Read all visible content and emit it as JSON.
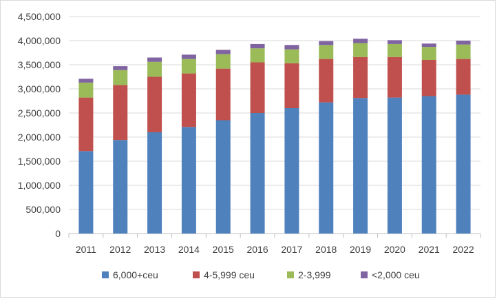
{
  "chart_data": {
    "type": "bar",
    "stacked": true,
    "categories": [
      "2011",
      "2012",
      "2013",
      "2014",
      "2015",
      "2016",
      "2017",
      "2018",
      "2019",
      "2020",
      "2021",
      "2022"
    ],
    "series": [
      {
        "name": "6,000+ceu",
        "color": "#4F81BD",
        "values": [
          1710000,
          1940000,
          2100000,
          2210000,
          2350000,
          2500000,
          2600000,
          2720000,
          2810000,
          2820000,
          2850000,
          2880000
        ]
      },
      {
        "name": "4-5,999 ceu",
        "color": "#C0504D",
        "values": [
          1110000,
          1140000,
          1150000,
          1110000,
          1070000,
          1050000,
          930000,
          900000,
          850000,
          840000,
          750000,
          740000
        ]
      },
      {
        "name": "2-3,999",
        "color": "#9BBB59",
        "values": [
          310000,
          310000,
          310000,
          300000,
          300000,
          290000,
          290000,
          290000,
          290000,
          270000,
          270000,
          300000
        ]
      },
      {
        "name": "<2,000 ceu",
        "color": "#8064A2",
        "values": [
          80000,
          80000,
          90000,
          90000,
          90000,
          90000,
          90000,
          80000,
          90000,
          80000,
          70000,
          80000
        ]
      }
    ],
    "yticks": [
      "0",
      "500,000",
      "1,000,000",
      "1,500,000",
      "2,000,000",
      "2,500,000",
      "3,000,000",
      "3,500,000",
      "4,000,000",
      "4,500,000"
    ],
    "ylim": [
      0,
      4500000
    ],
    "grid": true,
    "legend": "bottom"
  }
}
